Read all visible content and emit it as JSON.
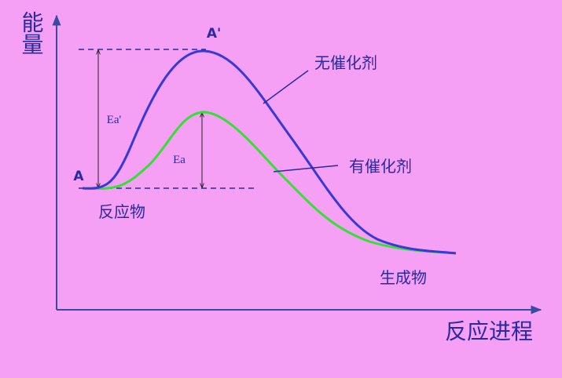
{
  "axes": {
    "y_label": "能量",
    "x_label": "反应进程"
  },
  "points": {
    "peak": "A'",
    "start": "A"
  },
  "energies": {
    "uncatalyzed": "Ea'",
    "catalyzed": "Ea"
  },
  "curves": {
    "uncatalyzed": "无催化剂",
    "catalyzed": "有催化剂"
  },
  "states": {
    "reactant": "反应物",
    "product": "生成物"
  }
}
